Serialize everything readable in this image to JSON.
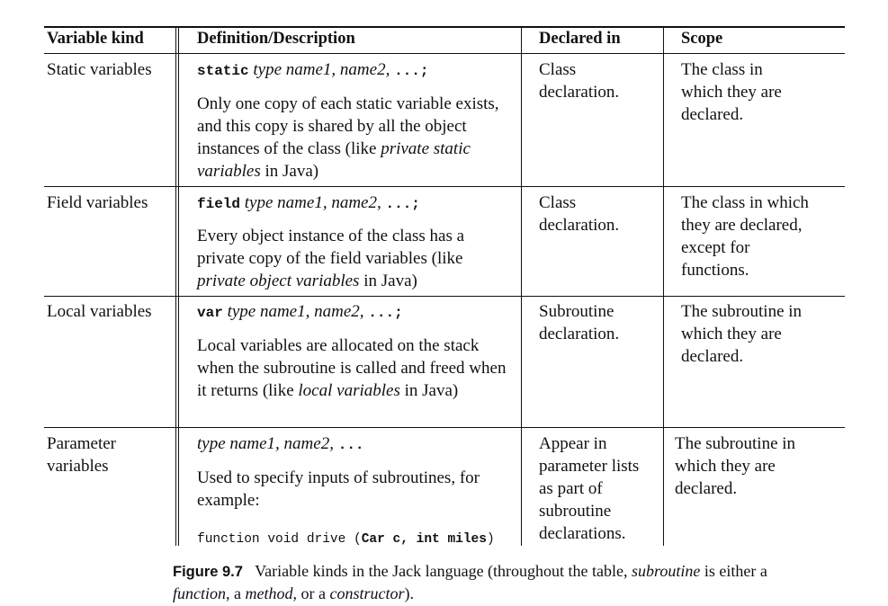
{
  "headers": {
    "kind": "Variable kind",
    "definition": "Definition/Description",
    "declared": "Declared in",
    "scope": "Scope"
  },
  "rows": [
    {
      "kind": "Static variables",
      "keyword": "static",
      "syntax": "type name1, name2, ",
      "ellipsis": "...;",
      "desc_a": "Only one copy of each static variable exists, and this copy is shared by all the object instances of the class (like ",
      "desc_em": "private static variables",
      "desc_b": " in Java)",
      "declared": "Class declaration.",
      "scope": "The class in which they are declared."
    },
    {
      "kind": "Field variables",
      "keyword": "field",
      "syntax": "type name1, name2, ",
      "ellipsis": "...;",
      "desc_a": "Every object instance of the class has a private copy of the field variables (like ",
      "desc_em": "private object variables",
      "desc_b": " in Java)",
      "declared": "Class declaration.",
      "scope": "The class in which they are declared, except for functions."
    },
    {
      "kind": "Local variables",
      "keyword": "var",
      "syntax": "type name1, name2, ",
      "ellipsis": "...;",
      "desc_a": "Local variables are allocated on the stack when the subroutine is called and freed when it returns (like ",
      "desc_em": "local variables",
      "desc_b": " in Java)",
      "declared": "Subroutine declaration.",
      "scope": "The subroutine in which they are declared."
    },
    {
      "kind": "Parameter variables",
      "syntax": "type name1, name2, ",
      "ellipsis": "...",
      "desc": "Used to specify inputs of subroutines, for example:",
      "example_plain": "function void drive (",
      "example_bold": "Car c, int miles",
      "example_close": ")",
      "declared": "Appear in parameter lists as part of subroutine declarations.",
      "scope": "The subroutine in which they are declared."
    }
  ],
  "caption": {
    "label": "Figure 9.7",
    "text_a": "Variable kinds in the Jack language (throughout the table, ",
    "em1": "subroutine",
    "text_b": " is either a ",
    "em2": "function",
    "text_c": ", a ",
    "em3": "method",
    "text_d": ", or a ",
    "em4": "constructor",
    "text_e": ")."
  }
}
